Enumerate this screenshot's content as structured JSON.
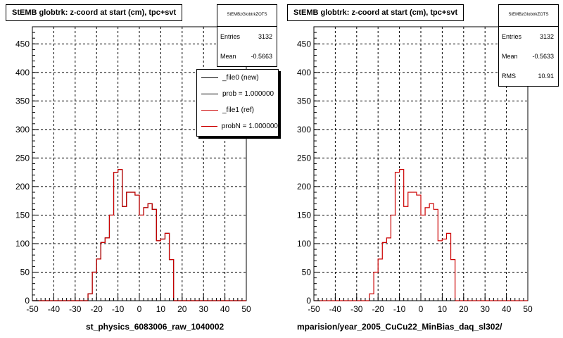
{
  "colors": {
    "new": "#000000",
    "ref": "#cc0000",
    "frame": "#000000"
  },
  "chart_data": [
    {
      "type": "line",
      "step": true,
      "title": "StEMB globtrk: z-coord at start (cm), tpc+svt",
      "xlabel": "st_physics_6083006_raw_1040002",
      "ylabel": "",
      "xlim": [
        -50,
        50
      ],
      "ylim": [
        0,
        480
      ],
      "grid": true,
      "xticks": [
        -50,
        -40,
        -30,
        -20,
        -10,
        0,
        10,
        20,
        30,
        40,
        50
      ],
      "xtick_labels": [
        "-50",
        "-40",
        "-30",
        "-20",
        "-10",
        "0",
        "10",
        "20",
        "30",
        "40",
        "50"
      ],
      "yticks": [
        0,
        50,
        100,
        150,
        200,
        250,
        300,
        350,
        400,
        450
      ],
      "ytick_labels": [
        "0",
        "50",
        "100",
        "150",
        "200",
        "250",
        "300",
        "350",
        "400",
        "450"
      ],
      "bin_edges": [
        -50,
        -48,
        -46,
        -44,
        -42,
        -40,
        -38,
        -36,
        -34,
        -32,
        -30,
        -28,
        -26,
        -24,
        -22,
        -20,
        -18,
        -16,
        -14,
        -12,
        -10,
        -8,
        -6,
        -4,
        -2,
        0,
        2,
        4,
        6,
        8,
        10,
        12,
        14,
        16,
        18,
        20,
        22,
        24,
        26,
        28,
        30,
        32,
        34,
        36,
        38,
        40,
        42,
        44,
        46,
        48,
        50
      ],
      "series": [
        {
          "name": "_file0 (new)",
          "color_key": "new",
          "values": [
            0,
            0,
            0,
            0,
            0,
            0,
            0,
            0,
            0,
            0,
            0,
            0,
            0,
            12,
            50,
            73,
            102,
            110,
            150,
            225,
            230,
            165,
            190,
            190,
            185,
            150,
            163,
            170,
            160,
            105,
            108,
            118,
            72,
            0,
            0,
            0,
            0,
            0,
            0,
            0,
            0,
            0,
            0,
            0,
            0,
            0,
            0,
            0,
            0,
            0
          ]
        },
        {
          "name": "_file1 (ref)",
          "color_key": "ref",
          "values": [
            0,
            0,
            0,
            0,
            0,
            0,
            0,
            0,
            0,
            0,
            0,
            0,
            0,
            12,
            50,
            73,
            102,
            110,
            150,
            225,
            230,
            165,
            190,
            190,
            185,
            150,
            163,
            170,
            160,
            105,
            108,
            118,
            72,
            0,
            0,
            0,
            0,
            0,
            0,
            0,
            0,
            0,
            0,
            0,
            0,
            0,
            0,
            0,
            0,
            0
          ]
        }
      ],
      "stats": {
        "name": "StEMBzGlobtrkZOTS",
        "entries_label": "Entries",
        "entries": "3132",
        "mean_label": "Mean",
        "mean": "-0.5663"
      },
      "legend": {
        "placement": "top-right",
        "entries": [
          "_file0 (new)",
          "prob = 1.000000",
          "_file1 (ref)",
          "probN = 1.000000"
        ]
      }
    },
    {
      "type": "line",
      "step": true,
      "title": "StEMB globtrk: z-coord at start (cm), tpc+svt",
      "xlabel": "mparision/year_2005_CuCu22_MinBias_daq_sl302/",
      "ylabel": "",
      "xlim": [
        -50,
        50
      ],
      "ylim": [
        0,
        480
      ],
      "grid": true,
      "xticks": [
        -50,
        -40,
        -30,
        -20,
        -10,
        0,
        10,
        20,
        30,
        40,
        50
      ],
      "xtick_labels": [
        "-50",
        "-40",
        "-30",
        "-20",
        "-10",
        "0",
        "10",
        "20",
        "30",
        "40",
        "50"
      ],
      "yticks": [
        0,
        50,
        100,
        150,
        200,
        250,
        300,
        350,
        400,
        450
      ],
      "ytick_labels": [
        "0",
        "50",
        "100",
        "150",
        "200",
        "250",
        "300",
        "350",
        "400",
        "450"
      ],
      "bin_edges": [
        -50,
        -48,
        -46,
        -44,
        -42,
        -40,
        -38,
        -36,
        -34,
        -32,
        -30,
        -28,
        -26,
        -24,
        -22,
        -20,
        -18,
        -16,
        -14,
        -12,
        -10,
        -8,
        -6,
        -4,
        -2,
        0,
        2,
        4,
        6,
        8,
        10,
        12,
        14,
        16,
        18,
        20,
        22,
        24,
        26,
        28,
        30,
        32,
        34,
        36,
        38,
        40,
        42,
        44,
        46,
        48,
        50
      ],
      "series": [
        {
          "name": "_file1 (ref)",
          "color_key": "ref",
          "values": [
            0,
            0,
            0,
            0,
            0,
            0,
            0,
            0,
            0,
            0,
            0,
            0,
            0,
            12,
            50,
            73,
            102,
            110,
            150,
            225,
            230,
            165,
            190,
            190,
            185,
            150,
            163,
            170,
            160,
            105,
            108,
            118,
            72,
            0,
            0,
            0,
            0,
            0,
            0,
            0,
            0,
            0,
            0,
            0,
            0,
            0,
            0,
            0,
            0,
            0
          ]
        }
      ],
      "stats": {
        "name": "StEMBzGlobtrkZOTS",
        "entries_label": "Entries",
        "entries": "3132",
        "mean_label": "Mean",
        "mean": "-0.5633",
        "rms_label": "RMS",
        "rms": "10.91"
      }
    }
  ]
}
